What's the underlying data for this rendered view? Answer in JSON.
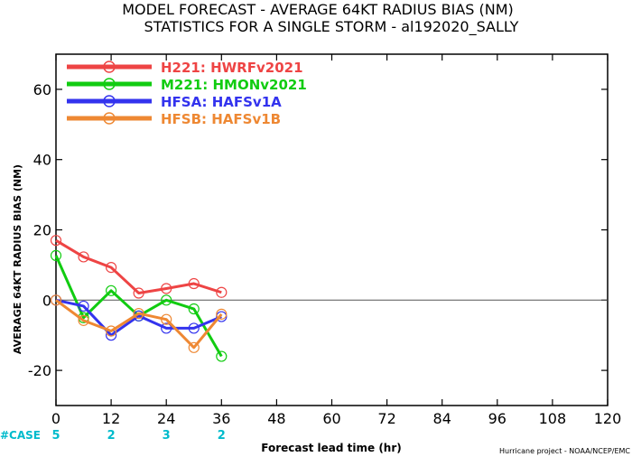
{
  "chart_data": {
    "type": "line",
    "title": "MODEL FORECAST - AVERAGE 64KT RADIUS BIAS (NM)",
    "subtitle": "STATISTICS FOR A SINGLE STORM - al192020_SALLY",
    "xlabel": "Forecast lead time (hr)",
    "ylabel": "AVERAGE 64KT RADIUS BIAS (NM)",
    "xlim": [
      0,
      120
    ],
    "ylim": [
      -30,
      70
    ],
    "x_ticks": [
      0,
      12,
      24,
      36,
      48,
      60,
      72,
      84,
      96,
      108,
      120
    ],
    "y_ticks": [
      -20,
      0,
      20,
      40,
      60
    ],
    "zero_line": true,
    "grid": false,
    "legend_position": "top-left",
    "credit": "Hurricane project - NOAA/NCEP/EMC",
    "case_label": "#CASE",
    "case_counts": [
      {
        "x": 0,
        "n": "5"
      },
      {
        "x": 12,
        "n": "2"
      },
      {
        "x": 24,
        "n": "3"
      },
      {
        "x": 36,
        "n": "2"
      }
    ],
    "series": [
      {
        "id": "H221",
        "name": "H221: HWRFv2021",
        "color": "#ee4444",
        "x": [
          0,
          6,
          12,
          18,
          24,
          30,
          36
        ],
        "y": [
          17,
          12.3,
          9.3,
          2,
          3.3,
          4.7,
          2.2
        ]
      },
      {
        "id": "M221",
        "name": "M221: HMONv2021",
        "color": "#11cc11",
        "x": [
          0,
          6,
          12,
          18,
          24,
          30,
          36
        ],
        "y": [
          12.7,
          -5,
          2.7,
          -4.5,
          0,
          -2.5,
          -16
        ]
      },
      {
        "id": "HFSA",
        "name": "HFSA: HAFSv1A",
        "color": "#3333ee",
        "x": [
          0,
          6,
          12,
          18,
          24,
          30,
          36
        ],
        "y": [
          0,
          -1.7,
          -10,
          -4.5,
          -8,
          -8,
          -4.7
        ]
      },
      {
        "id": "HFSB",
        "name": "HFSB: HAFSv1B",
        "color": "#ee8833",
        "x": [
          0,
          6,
          12,
          18,
          24,
          30,
          36
        ],
        "y": [
          0,
          -5.8,
          -8.8,
          -3.8,
          -5.5,
          -13.5,
          -4
        ]
      }
    ]
  }
}
